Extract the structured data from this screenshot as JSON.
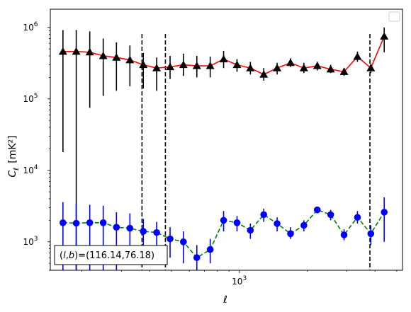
{
  "chart_data": {
    "type": "scatter",
    "xlabel": "ℓ",
    "ylabel_main": "C",
    "ylabel_sub": "ℓ",
    "ylabel_unit": "[mK²]",
    "xscale": "log",
    "yscale": "log",
    "xlim": [
      145,
      5300
    ],
    "ylim": [
      400,
      1800000
    ],
    "x_ticks": [
      {
        "value": 1000,
        "base": "10",
        "exp": "3"
      }
    ],
    "y_ticks": [
      {
        "value": 1000,
        "base": "10",
        "exp": "3"
      },
      {
        "value": 10000,
        "base": "10",
        "exp": "4"
      },
      {
        "value": 100000,
        "base": "10",
        "exp": "5"
      },
      {
        "value": 1000000,
        "base": "10",
        "exp": "6"
      }
    ],
    "annotation": "(l,b)=(116.14,76.18)",
    "annotation_prefix": "(",
    "annotation_l": "l",
    "annotation_comma": ",",
    "annotation_b": "b",
    "annotation_rest": ")=(116.14,76.18)",
    "legend": {
      "placement": "top-right",
      "entries": []
    },
    "vlines_x": [
      370,
      470,
      3800
    ],
    "series": [
      {
        "marker": "triangle",
        "marker_color": "#000000",
        "line_color": "#ff0000",
        "line_style": "solid",
        "points": [
          {
            "x": 165,
            "y": 460000,
            "ylo": 18000,
            "yhi": 920000
          },
          {
            "x": 189,
            "y": 460000,
            "ylo": 400,
            "yhi": 920000
          },
          {
            "x": 217,
            "y": 450000,
            "ylo": 75000,
            "yhi": 880000
          },
          {
            "x": 249,
            "y": 400000,
            "ylo": 110000,
            "yhi": 700000
          },
          {
            "x": 285,
            "y": 380000,
            "ylo": 130000,
            "yhi": 620000
          },
          {
            "x": 327,
            "y": 350000,
            "ylo": 150000,
            "yhi": 560000
          },
          {
            "x": 375,
            "y": 300000,
            "ylo": 140000,
            "yhi": 440000
          },
          {
            "x": 430,
            "y": 270000,
            "ylo": 130000,
            "yhi": 380000
          },
          {
            "x": 493,
            "y": 280000,
            "ylo": 190000,
            "yhi": 400000
          },
          {
            "x": 565,
            "y": 300000,
            "ylo": 210000,
            "yhi": 430000
          },
          {
            "x": 648,
            "y": 290000,
            "ylo": 200000,
            "yhi": 400000
          },
          {
            "x": 743,
            "y": 290000,
            "ylo": 200000,
            "yhi": 390000
          },
          {
            "x": 852,
            "y": 360000,
            "ylo": 270000,
            "yhi": 470000
          },
          {
            "x": 977,
            "y": 300000,
            "ylo": 240000,
            "yhi": 360000
          },
          {
            "x": 1120,
            "y": 270000,
            "ylo": 220000,
            "yhi": 330000
          },
          {
            "x": 1284,
            "y": 220000,
            "ylo": 180000,
            "yhi": 270000
          },
          {
            "x": 1472,
            "y": 270000,
            "ylo": 220000,
            "yhi": 320000
          },
          {
            "x": 1688,
            "y": 320000,
            "ylo": 280000,
            "yhi": 370000
          },
          {
            "x": 1935,
            "y": 270000,
            "ylo": 230000,
            "yhi": 320000
          },
          {
            "x": 2219,
            "y": 290000,
            "ylo": 250000,
            "yhi": 330000
          },
          {
            "x": 2544,
            "y": 260000,
            "ylo": 230000,
            "yhi": 300000
          },
          {
            "x": 2917,
            "y": 240000,
            "ylo": 210000,
            "yhi": 270000
          },
          {
            "x": 3345,
            "y": 390000,
            "ylo": 330000,
            "yhi": 460000
          },
          {
            "x": 3835,
            "y": 270000,
            "ylo": 230000,
            "yhi": 310000
          },
          {
            "x": 4397,
            "y": 750000,
            "ylo": 450000,
            "yhi": 1000000
          }
        ]
      },
      {
        "marker": "circle",
        "marker_color": "#0000ff",
        "line_color": "#008000",
        "line_style": "dashed",
        "points": [
          {
            "x": 165,
            "y": 1850,
            "ylo": 400,
            "yhi": 3600
          },
          {
            "x": 189,
            "y": 1820,
            "ylo": 400,
            "yhi": 3400
          },
          {
            "x": 217,
            "y": 1850,
            "ylo": 400,
            "yhi": 3300
          },
          {
            "x": 249,
            "y": 1850,
            "ylo": 400,
            "yhi": 3200
          },
          {
            "x": 285,
            "y": 1600,
            "ylo": 400,
            "yhi": 2600
          },
          {
            "x": 327,
            "y": 1550,
            "ylo": 700,
            "yhi": 2500
          },
          {
            "x": 375,
            "y": 1400,
            "ylo": 700,
            "yhi": 2100
          },
          {
            "x": 430,
            "y": 1350,
            "ylo": 700,
            "yhi": 1900
          },
          {
            "x": 493,
            "y": 1100,
            "ylo": 600,
            "yhi": 1600
          },
          {
            "x": 565,
            "y": 1000,
            "ylo": 500,
            "yhi": 1400
          },
          {
            "x": 648,
            "y": 600,
            "ylo": 400,
            "yhi": 900
          },
          {
            "x": 743,
            "y": 780,
            "ylo": 500,
            "yhi": 1100
          },
          {
            "x": 852,
            "y": 2000,
            "ylo": 1400,
            "yhi": 2700
          },
          {
            "x": 977,
            "y": 1850,
            "ylo": 1400,
            "yhi": 2300
          },
          {
            "x": 1120,
            "y": 1450,
            "ylo": 1100,
            "yhi": 1800
          },
          {
            "x": 1284,
            "y": 2400,
            "ylo": 1900,
            "yhi": 2900
          },
          {
            "x": 1472,
            "y": 1800,
            "ylo": 1400,
            "yhi": 2200
          },
          {
            "x": 1688,
            "y": 1300,
            "ylo": 1100,
            "yhi": 1600
          },
          {
            "x": 1935,
            "y": 1700,
            "ylo": 1400,
            "yhi": 2000
          },
          {
            "x": 2219,
            "y": 2800,
            "ylo": 2500,
            "yhi": 3100
          },
          {
            "x": 2544,
            "y": 2400,
            "ylo": 2000,
            "yhi": 2800
          },
          {
            "x": 2917,
            "y": 1250,
            "ylo": 1050,
            "yhi": 1500
          },
          {
            "x": 3345,
            "y": 2200,
            "ylo": 1800,
            "yhi": 2700
          },
          {
            "x": 3835,
            "y": 1300,
            "ylo": 900,
            "yhi": 1700
          },
          {
            "x": 4397,
            "y": 2600,
            "ylo": 1000,
            "yhi": 4200
          }
        ]
      }
    ]
  }
}
